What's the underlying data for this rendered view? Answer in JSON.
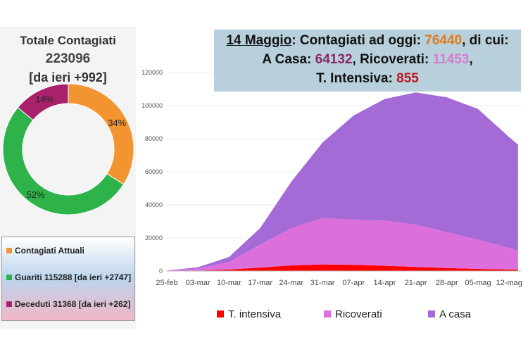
{
  "summary": {
    "title": "Totale Contagiati",
    "total": "223096",
    "delta": "[da ieri +992]"
  },
  "donut": {
    "slices": [
      {
        "label": "Contagiati Attuali",
        "pct": 34,
        "pct_label": "34%",
        "color": "#f29430"
      },
      {
        "label": "Guariti",
        "pct": 52,
        "pct_label": "52%",
        "color": "#2eb34a"
      },
      {
        "label": "Deceduti",
        "pct": 14,
        "pct_label": "14%",
        "color": "#a8226b"
      }
    ]
  },
  "legend_box": {
    "items": [
      "Contagiati Attuali",
      "Guariti 115288 [da ieri +2747]",
      "Deceduti 31368 [da ieri +262]"
    ]
  },
  "banner": {
    "date": "14 Maggio",
    "l1a": ": Contagiati ad oggi: ",
    "attuali": "76440",
    "l1b": ", di cui:",
    "casa_label": "A Casa: ",
    "casa": "64132",
    "ric_label": ", Ricoverati: ",
    "ric": "11453",
    "comma": ",",
    "ti_label": "T. Intensiva: ",
    "ti": "855"
  },
  "chart_data": {
    "type": "area",
    "stacked": true,
    "x": [
      "25-feb",
      "03-mar",
      "10-mar",
      "17-mar",
      "24-mar",
      "31-mar",
      "07-apr",
      "14-apr",
      "21-apr",
      "28-apr",
      "05-mag",
      "12-mag",
      "14-mag"
    ],
    "x_ticks": [
      "25-feb",
      "03-mar",
      "10-mar",
      "17-mar",
      "24-mar",
      "31-mar",
      "07-apr",
      "14-apr",
      "21-apr",
      "28-apr",
      "05-mag",
      "12-mag"
    ],
    "y_ticks": [
      "0",
      "20000",
      "40000",
      "60000",
      "80000",
      "100000",
      "120000"
    ],
    "ylim": [
      0,
      120000
    ],
    "series": [
      {
        "name": "T. intensiva",
        "color": "#ff0000",
        "values": [
          0,
          200,
          900,
          2100,
          3400,
          4000,
          3800,
          3200,
          2500,
          1800,
          1300,
          950,
          855
        ]
      },
      {
        "name": "Ricoverati",
        "color": "#dd6fdd",
        "values": [
          200,
          1300,
          4600,
          13900,
          22600,
          28000,
          27200,
          27300,
          25500,
          21700,
          17700,
          13000,
          11453
        ]
      },
      {
        "name": "A casa",
        "color": "#a46ad6",
        "values": [
          100,
          800,
          3000,
          10000,
          28000,
          45600,
          63000,
          73500,
          80000,
          81500,
          79000,
          67000,
          64132
        ]
      }
    ],
    "legend_position": "bottom"
  }
}
